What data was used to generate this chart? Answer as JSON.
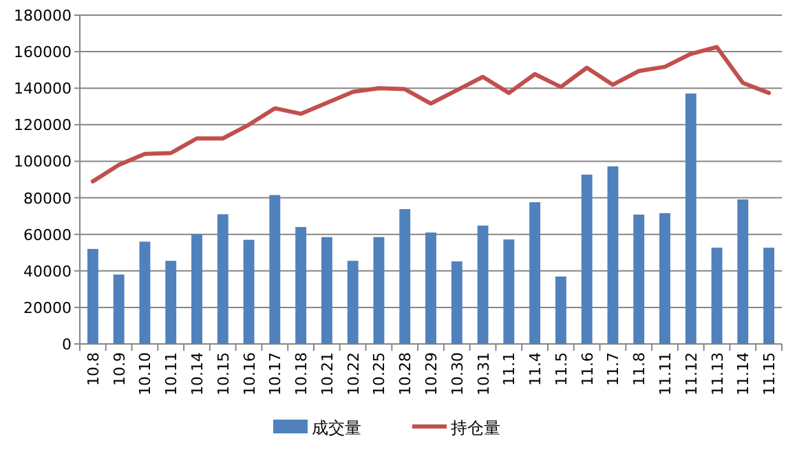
{
  "chart_data": {
    "type": "bar",
    "categories": [
      "10.8",
      "10.9",
      "10.10",
      "10.11",
      "10.14",
      "10.15",
      "10.16",
      "10.17",
      "10.18",
      "10.21",
      "10.22",
      "10.25",
      "10.28",
      "10.29",
      "10.30",
      "10.31",
      "11.1",
      "11.4",
      "11.5",
      "11.6",
      "11.7",
      "11.8",
      "11.11",
      "11.12",
      "11.13",
      "11.14",
      "11.15"
    ],
    "series": [
      {
        "name": "成交量",
        "color": "#4f81bd",
        "values": [
          52000,
          38000,
          56000,
          45500,
          60000,
          71000,
          57000,
          81500,
          64000,
          58500,
          45500,
          58500,
          73800,
          61000,
          45200,
          64800,
          57200,
          77600,
          36900,
          92700,
          97200,
          70800,
          71600,
          137100,
          52700,
          79100,
          52700
        ]
      },
      {
        "name": "持仓量",
        "type": "line",
        "color": "#c0504d",
        "values": [
          89000,
          98000,
          104000,
          104500,
          112500,
          112500,
          120000,
          129000,
          126000,
          132000,
          138000,
          140000,
          139500,
          131600,
          138900,
          146200,
          137400,
          147700,
          140700,
          151200,
          141900,
          149400,
          151700,
          158800,
          162500,
          142900,
          137400
        ]
      }
    ],
    "ylim": [
      0,
      180000
    ],
    "yticks": [
      0,
      20000,
      40000,
      60000,
      80000,
      100000,
      120000,
      140000,
      160000,
      180000
    ],
    "grid": "y",
    "legend": "bottom"
  }
}
